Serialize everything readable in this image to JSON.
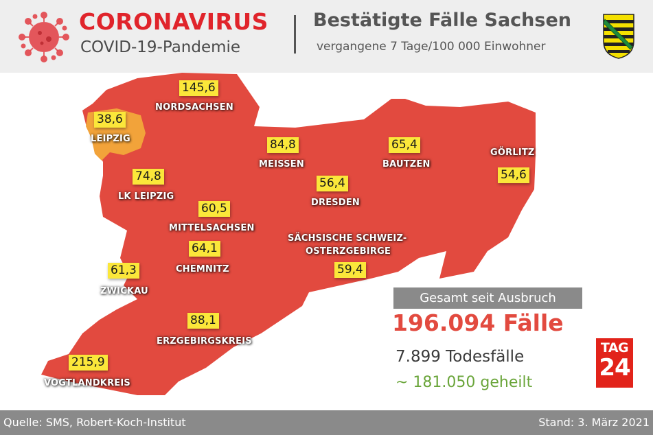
{
  "header": {
    "title": "CORONAVIRUS",
    "subtitle": "COVID-19-Pandemie",
    "heading": "Bestätigte Fälle Sachsen",
    "subheading": "vergangene 7 Tage/100 000 Einwohner",
    "icon_virus": "coronavirus-icon",
    "icon_coat": "saxony-coat-of-arms"
  },
  "districts": [
    {
      "name": "NORDSACHSEN",
      "value": "145,6"
    },
    {
      "name": "LEIPZIG",
      "value": "38,6"
    },
    {
      "name": "MEISSEN",
      "value": "84,8"
    },
    {
      "name": "BAUTZEN",
      "value": "65,4"
    },
    {
      "name": "GÖRLITZ",
      "value": "54,6"
    },
    {
      "name": "LK LEIPZIG",
      "value": "74,8"
    },
    {
      "name": "DRESDEN",
      "value": "56,4"
    },
    {
      "name": "MITTELSACHSEN",
      "value": "60,5"
    },
    {
      "name": "SÄCHSISCHE SCHWEIZ-",
      "value": ""
    },
    {
      "name": "OSTERZGEBIRGE",
      "value": "59,4"
    },
    {
      "name": "CHEMNITZ",
      "value": "64,1"
    },
    {
      "name": "ZWICKAU",
      "value": "61,3"
    },
    {
      "name": "ERZGEBIRGSKREIS",
      "value": "88,1"
    },
    {
      "name": "VOGTLANDKREIS",
      "value": "215,9"
    }
  ],
  "totals": {
    "heading": "Gesamt seit Ausbruch",
    "cases": "196.094 Fälle",
    "deaths": "7.899 Todesfälle",
    "recovered": "~ 181.050 geheilt"
  },
  "logo": {
    "line1": "TAG",
    "line2": "24"
  },
  "footer": {
    "source": "Quelle: SMS, Robert-Koch-Institut",
    "date": "Stand: 3. März 2021"
  },
  "colors": {
    "map_red": "#e24a3f",
    "leipzig_orange": "#f2a33a",
    "value_yellow": "#fbe73a",
    "title_red": "#e0242b",
    "recovered_green": "#6aa53a"
  }
}
